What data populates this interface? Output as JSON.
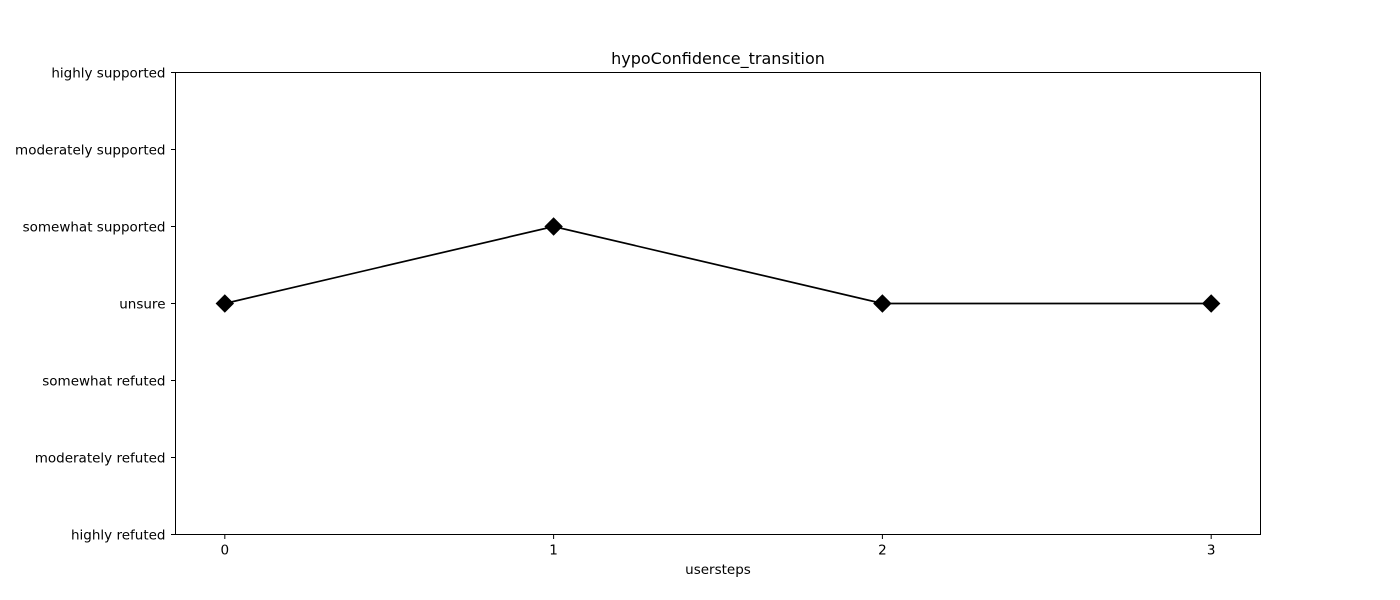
{
  "chart_data": {
    "type": "line",
    "title": "hypoConfidence_transition",
    "xlabel": "usersteps",
    "ylabel": "",
    "x": [
      0,
      1,
      2,
      3
    ],
    "x_ticks": [
      "0",
      "1",
      "2",
      "3"
    ],
    "y_categories": [
      "highly refuted",
      "moderately refuted",
      "somewhat refuted",
      "unsure",
      "somewhat supported",
      "moderately supported",
      "highly supported"
    ],
    "series": [
      {
        "values": [
          "unsure",
          "somewhat supported",
          "unsure",
          "unsure"
        ],
        "color": "#000000",
        "marker": "diamond"
      }
    ],
    "grid": false,
    "legend": "none"
  }
}
